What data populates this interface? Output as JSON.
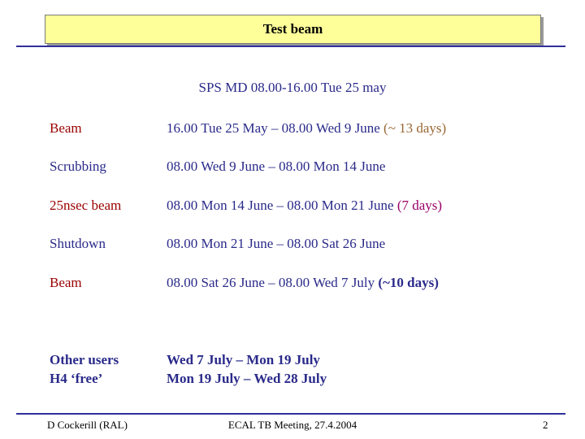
{
  "slide": {
    "title": "Test beam",
    "subtitle": "SPS MD 08.00-16.00 Tue 25 may",
    "rows": [
      {
        "label": "Beam",
        "value": "16.00 Tue 25 May – 08.00 Wed 9 June",
        "note": "(~ 13 days)"
      },
      {
        "label": "Scrubbing",
        "value": "08.00 Wed 9 June – 08.00 Mon 14 June",
        "note": ""
      },
      {
        "label": "25nsec beam",
        "value": "08.00 Mon 14 June – 08.00 Mon 21 June",
        "note": "(7 days)"
      },
      {
        "label": "Shutdown",
        "value": "08.00 Mon 21 June – 08.00 Sat 26 June",
        "note": ""
      },
      {
        "label": "Beam",
        "value": "08.00 Sat 26 June – 08.00 Wed 7 July",
        "note": "(~10 days)"
      }
    ],
    "other": [
      {
        "label": "Other users",
        "value": "Wed 7 July – Mon 19 July"
      },
      {
        "label": "H4 ‘free’",
        "value": "Mon 19 July – Wed 28 July"
      }
    ]
  },
  "footer": {
    "author": "D Cockerill (RAL)",
    "meeting": "ECAL TB Meeting, 27.4.2004",
    "page": "2"
  },
  "colors": {
    "title_fill": "#ffff99",
    "text_blue": "#2a2a8a",
    "beam_red": "#990000",
    "note_gold": "#996633",
    "note_magenta": "#990066"
  }
}
